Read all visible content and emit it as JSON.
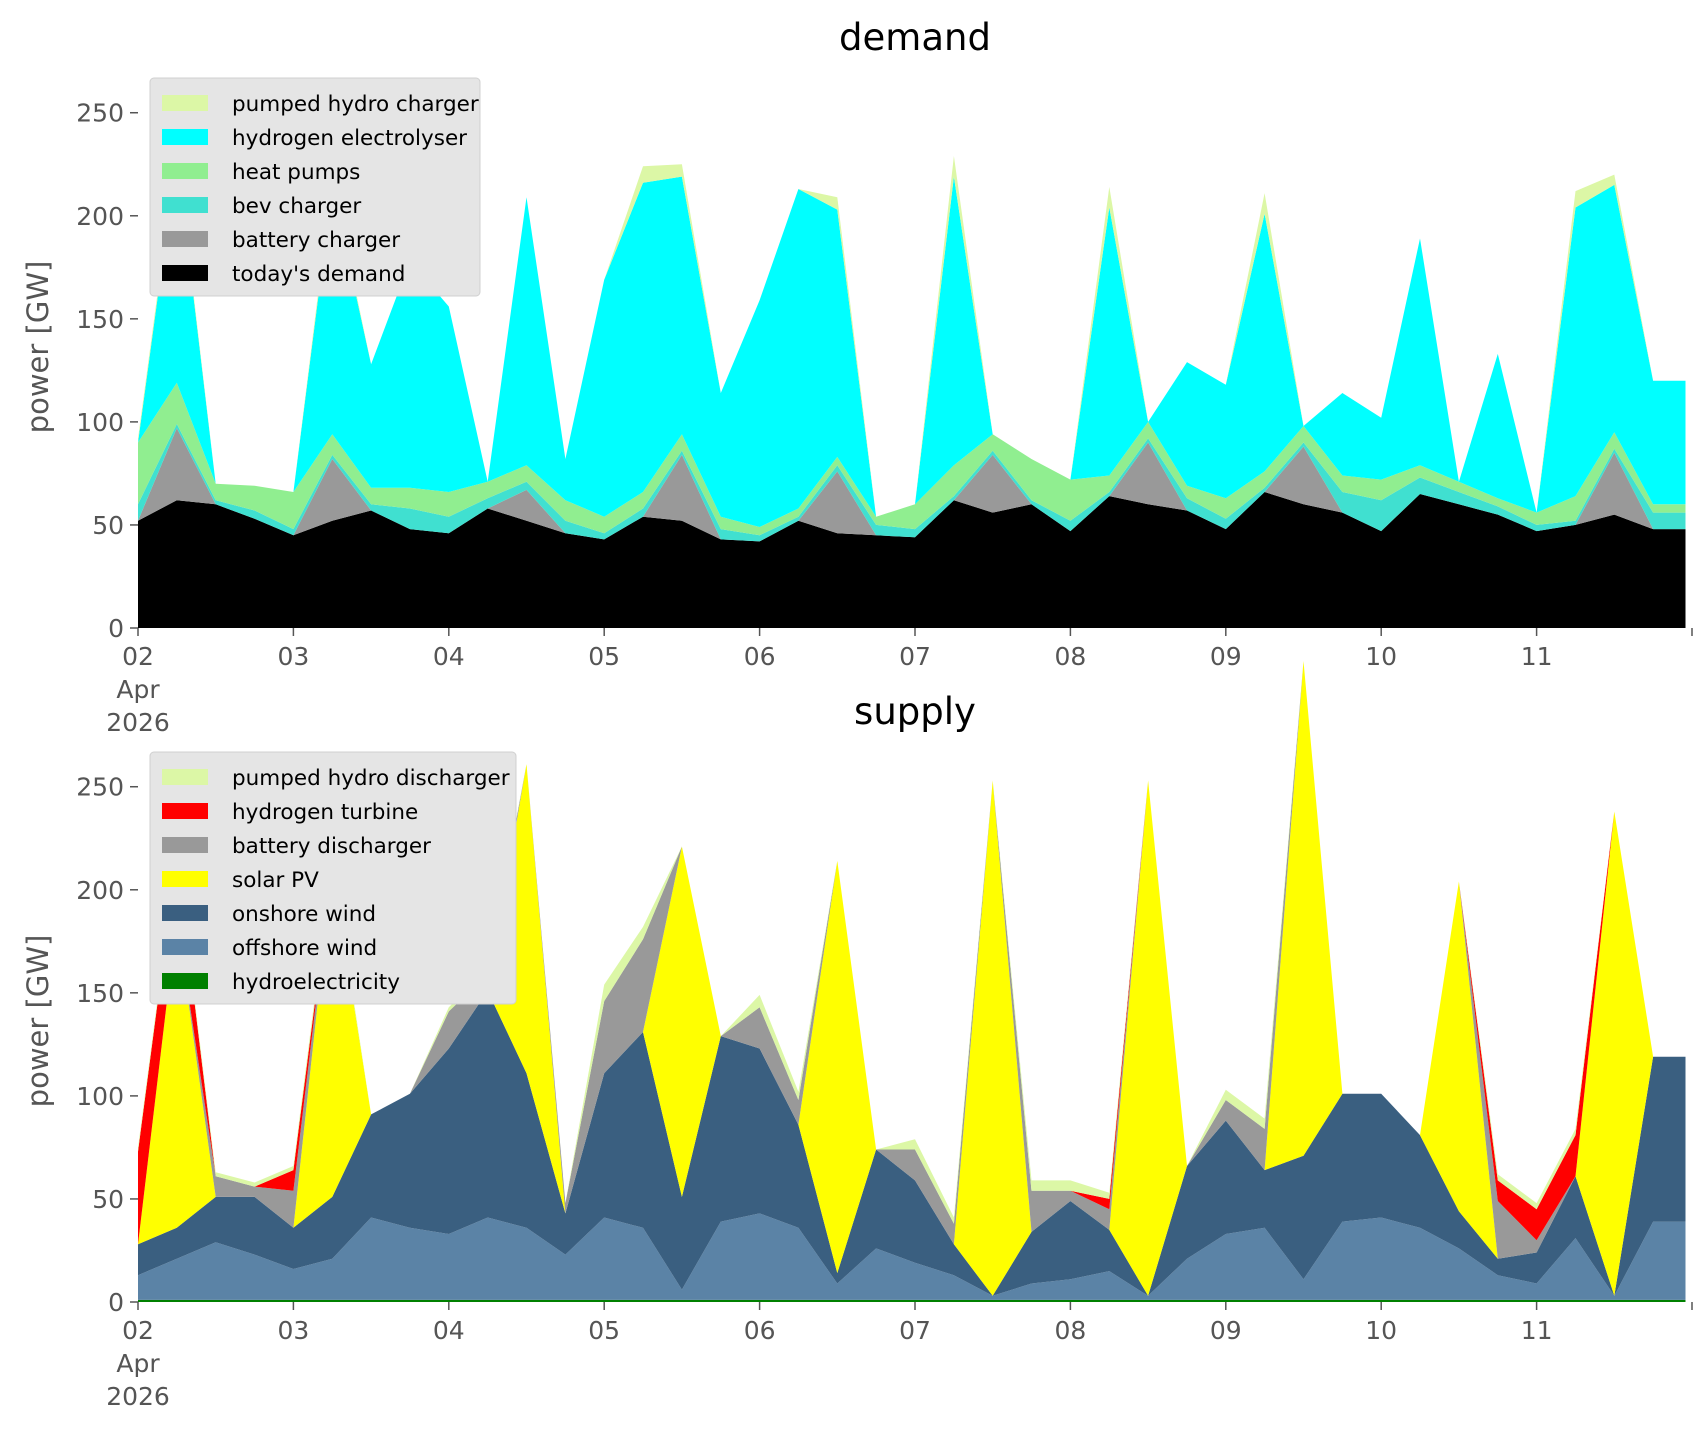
{
  "chart_data": [
    {
      "type": "area",
      "title": "demand",
      "ylabel": "power [GW]",
      "xlabel": "",
      "ylim": [
        0,
        262
      ],
      "xlim_days": [
        "2026-04-02",
        "2026-04-12"
      ],
      "grid": false,
      "legend_position": "top-left",
      "yticks": [
        0,
        50,
        100,
        150,
        200,
        250
      ],
      "xtick_labels": [
        [
          "02",
          "Apr",
          "2026"
        ],
        [
          "03"
        ],
        [
          "04"
        ],
        [
          "05"
        ],
        [
          "06"
        ],
        [
          "07"
        ],
        [
          "08"
        ],
        [
          "09"
        ],
        [
          "10"
        ],
        [
          "11"
        ]
      ],
      "x": [
        "2026-04-02",
        "2026-04-02 06:00",
        "2026-04-02 12:00",
        "2026-04-02 18:00",
        "2026-04-03",
        "2026-04-03 06:00",
        "2026-04-03 12:00",
        "2026-04-03 18:00",
        "2026-04-04",
        "2026-04-04 06:00",
        "2026-04-04 12:00",
        "2026-04-04 18:00",
        "2026-04-05",
        "2026-04-05 06:00",
        "2026-04-05 12:00",
        "2026-04-05 18:00",
        "2026-04-06",
        "2026-04-06 06:00",
        "2026-04-06 12:00",
        "2026-04-06 18:00",
        "2026-04-07",
        "2026-04-07 06:00",
        "2026-04-07 12:00",
        "2026-04-07 18:00",
        "2026-04-08",
        "2026-04-08 06:00",
        "2026-04-08 12:00",
        "2026-04-08 18:00",
        "2026-04-09",
        "2026-04-09 06:00",
        "2026-04-09 12:00",
        "2026-04-09 18:00",
        "2026-04-10",
        "2026-04-10 06:00",
        "2026-04-10 12:00",
        "2026-04-10 18:00",
        "2026-04-11",
        "2026-04-11 06:00",
        "2026-04-11 12:00",
        "2026-04-11 18:00"
      ],
      "series": [
        {
          "name": "today's demand",
          "color": "#000000",
          "values": [
            52,
            62,
            60,
            53,
            45,
            52,
            57,
            48,
            46,
            58,
            52,
            46,
            43,
            54,
            52,
            43,
            42,
            52,
            46,
            45,
            44,
            62,
            56,
            60,
            47,
            64,
            60,
            57,
            48,
            66,
            60,
            56,
            47,
            65,
            60,
            55,
            47,
            50,
            55,
            48
          ]
        },
        {
          "name": "battery charger",
          "color": "#999999",
          "values": [
            0,
            35,
            0,
            0,
            0,
            30,
            0,
            0,
            0,
            0,
            15,
            0,
            0,
            0,
            32,
            0,
            0,
            0,
            30,
            0,
            0,
            0,
            28,
            0,
            0,
            0,
            30,
            0,
            0,
            0,
            28,
            0,
            0,
            0,
            0,
            0,
            0,
            0,
            30,
            0
          ]
        },
        {
          "name": "bev charger",
          "color": "#40e0d0",
          "values": [
            8,
            2,
            2,
            4,
            3,
            2,
            3,
            10,
            8,
            5,
            4,
            6,
            3,
            4,
            2,
            5,
            3,
            2,
            3,
            5,
            4,
            2,
            2,
            2,
            5,
            2,
            2,
            6,
            5,
            2,
            2,
            10,
            15,
            8,
            6,
            4,
            3,
            2,
            2,
            8
          ]
        },
        {
          "name": "heat pumps",
          "color": "#90ee90",
          "values": [
            30,
            20,
            8,
            12,
            18,
            10,
            8,
            10,
            12,
            8,
            8,
            10,
            8,
            8,
            8,
            6,
            4,
            4,
            4,
            4,
            12,
            15,
            8,
            20,
            20,
            8,
            8,
            6,
            10,
            8,
            8,
            8,
            10,
            6,
            5,
            4,
            6,
            12,
            8,
            4
          ]
        },
        {
          "name": "hydrogen electrolyser",
          "color": "#00ffff",
          "values": [
            0,
            110,
            0,
            0,
            0,
            120,
            60,
            110,
            90,
            0,
            130,
            20,
            115,
            150,
            125,
            60,
            110,
            155,
            120,
            0,
            0,
            140,
            0,
            0,
            0,
            130,
            0,
            60,
            55,
            125,
            0,
            40,
            30,
            110,
            0,
            70,
            0,
            140,
            120,
            60
          ]
        },
        {
          "name": "pumped hydro charger",
          "color": "#dcf7a6",
          "values": [
            2,
            3,
            0,
            0,
            0,
            4,
            0,
            0,
            0,
            0,
            0,
            0,
            0,
            8,
            6,
            0,
            0,
            0,
            6,
            0,
            0,
            10,
            0,
            0,
            0,
            10,
            0,
            0,
            0,
            10,
            0,
            0,
            0,
            0,
            0,
            0,
            0,
            8,
            5,
            0
          ]
        }
      ]
    },
    {
      "type": "area",
      "title": "supply",
      "ylabel": "power [GW]",
      "xlabel": "",
      "ylim": [
        0,
        262
      ],
      "xlim_days": [
        "2026-04-02",
        "2026-04-12"
      ],
      "grid": false,
      "legend_position": "top-left",
      "yticks": [
        0,
        50,
        100,
        150,
        200,
        250
      ],
      "xtick_labels": [
        [
          "02",
          "Apr",
          "2026"
        ],
        [
          "03"
        ],
        [
          "04"
        ],
        [
          "05"
        ],
        [
          "06"
        ],
        [
          "07"
        ],
        [
          "08"
        ],
        [
          "09"
        ],
        [
          "10"
        ],
        [
          "11"
        ]
      ],
      "x": [
        "2026-04-02",
        "2026-04-02 06:00",
        "2026-04-02 12:00",
        "2026-04-02 18:00",
        "2026-04-03",
        "2026-04-03 06:00",
        "2026-04-03 12:00",
        "2026-04-03 18:00",
        "2026-04-04",
        "2026-04-04 06:00",
        "2026-04-04 12:00",
        "2026-04-04 18:00",
        "2026-04-05",
        "2026-04-05 06:00",
        "2026-04-05 12:00",
        "2026-04-05 18:00",
        "2026-04-06",
        "2026-04-06 06:00",
        "2026-04-06 12:00",
        "2026-04-06 18:00",
        "2026-04-07",
        "2026-04-07 06:00",
        "2026-04-07 12:00",
        "2026-04-07 18:00",
        "2026-04-08",
        "2026-04-08 06:00",
        "2026-04-08 12:00",
        "2026-04-08 18:00",
        "2026-04-09",
        "2026-04-09 06:00",
        "2026-04-09 12:00",
        "2026-04-09 18:00",
        "2026-04-10",
        "2026-04-10 06:00",
        "2026-04-10 12:00",
        "2026-04-10 18:00",
        "2026-04-11",
        "2026-04-11 06:00",
        "2026-04-11 12:00",
        "2026-04-11 18:00"
      ],
      "series": [
        {
          "name": "hydroelectricity",
          "color": "#008000",
          "values": [
            1,
            1,
            1,
            1,
            1,
            1,
            1,
            1,
            1,
            1,
            1,
            1,
            1,
            1,
            1,
            1,
            1,
            1,
            1,
            1,
            1,
            1,
            1,
            1,
            1,
            1,
            1,
            1,
            1,
            1,
            1,
            1,
            1,
            1,
            1,
            1,
            1,
            1,
            1,
            1
          ]
        },
        {
          "name": "offshore wind",
          "color": "#5b83a6",
          "values": [
            12,
            20,
            28,
            22,
            15,
            20,
            40,
            35,
            32,
            40,
            35,
            22,
            40,
            35,
            5,
            38,
            42,
            35,
            8,
            25,
            18,
            12,
            2,
            8,
            10,
            14,
            2,
            20,
            32,
            35,
            10,
            38,
            40,
            35,
            25,
            12,
            8,
            30,
            2,
            38
          ]
        },
        {
          "name": "onshore wind",
          "color": "#3a5f80",
          "values": [
            15,
            15,
            22,
            28,
            20,
            30,
            50,
            65,
            90,
            110,
            75,
            20,
            70,
            95,
            45,
            90,
            80,
            50,
            5,
            48,
            40,
            15,
            0,
            25,
            38,
            20,
            0,
            45,
            55,
            28,
            60,
            62,
            60,
            45,
            18,
            8,
            15,
            30,
            0,
            80
          ]
        },
        {
          "name": "solar PV",
          "color": "#ffff00",
          "values": [
            0,
            150,
            0,
            0,
            0,
            160,
            0,
            0,
            0,
            0,
            150,
            0,
            0,
            0,
            170,
            0,
            0,
            0,
            200,
            0,
            0,
            0,
            250,
            0,
            0,
            0,
            250,
            0,
            0,
            0,
            240,
            0,
            0,
            0,
            160,
            0,
            0,
            0,
            235,
            0
          ]
        },
        {
          "name": "battery discharger",
          "color": "#999999",
          "values": [
            0,
            0,
            10,
            5,
            18,
            0,
            0,
            0,
            18,
            8,
            0,
            5,
            35,
            45,
            0,
            0,
            20,
            12,
            0,
            0,
            15,
            10,
            0,
            20,
            5,
            10,
            0,
            0,
            10,
            20,
            0,
            0,
            0,
            0,
            0,
            28,
            6,
            0,
            0,
            0
          ]
        },
        {
          "name": "hydrogen turbine",
          "color": "#ff0000",
          "values": [
            45,
            30,
            0,
            0,
            10,
            0,
            0,
            0,
            0,
            0,
            0,
            0,
            0,
            0,
            0,
            0,
            0,
            0,
            0,
            0,
            0,
            0,
            0,
            0,
            0,
            5,
            0,
            0,
            0,
            0,
            0,
            0,
            0,
            0,
            0,
            10,
            15,
            20,
            0,
            0
          ]
        },
        {
          "name": "pumped hydro discharger",
          "color": "#dcf7a6",
          "values": [
            2,
            2,
            2,
            2,
            2,
            4,
            0,
            0,
            2,
            2,
            0,
            0,
            8,
            6,
            0,
            0,
            6,
            4,
            0,
            0,
            5,
            3,
            0,
            5,
            5,
            3,
            0,
            0,
            5,
            5,
            0,
            0,
            0,
            0,
            0,
            3,
            3,
            3,
            0,
            0
          ]
        }
      ]
    }
  ]
}
